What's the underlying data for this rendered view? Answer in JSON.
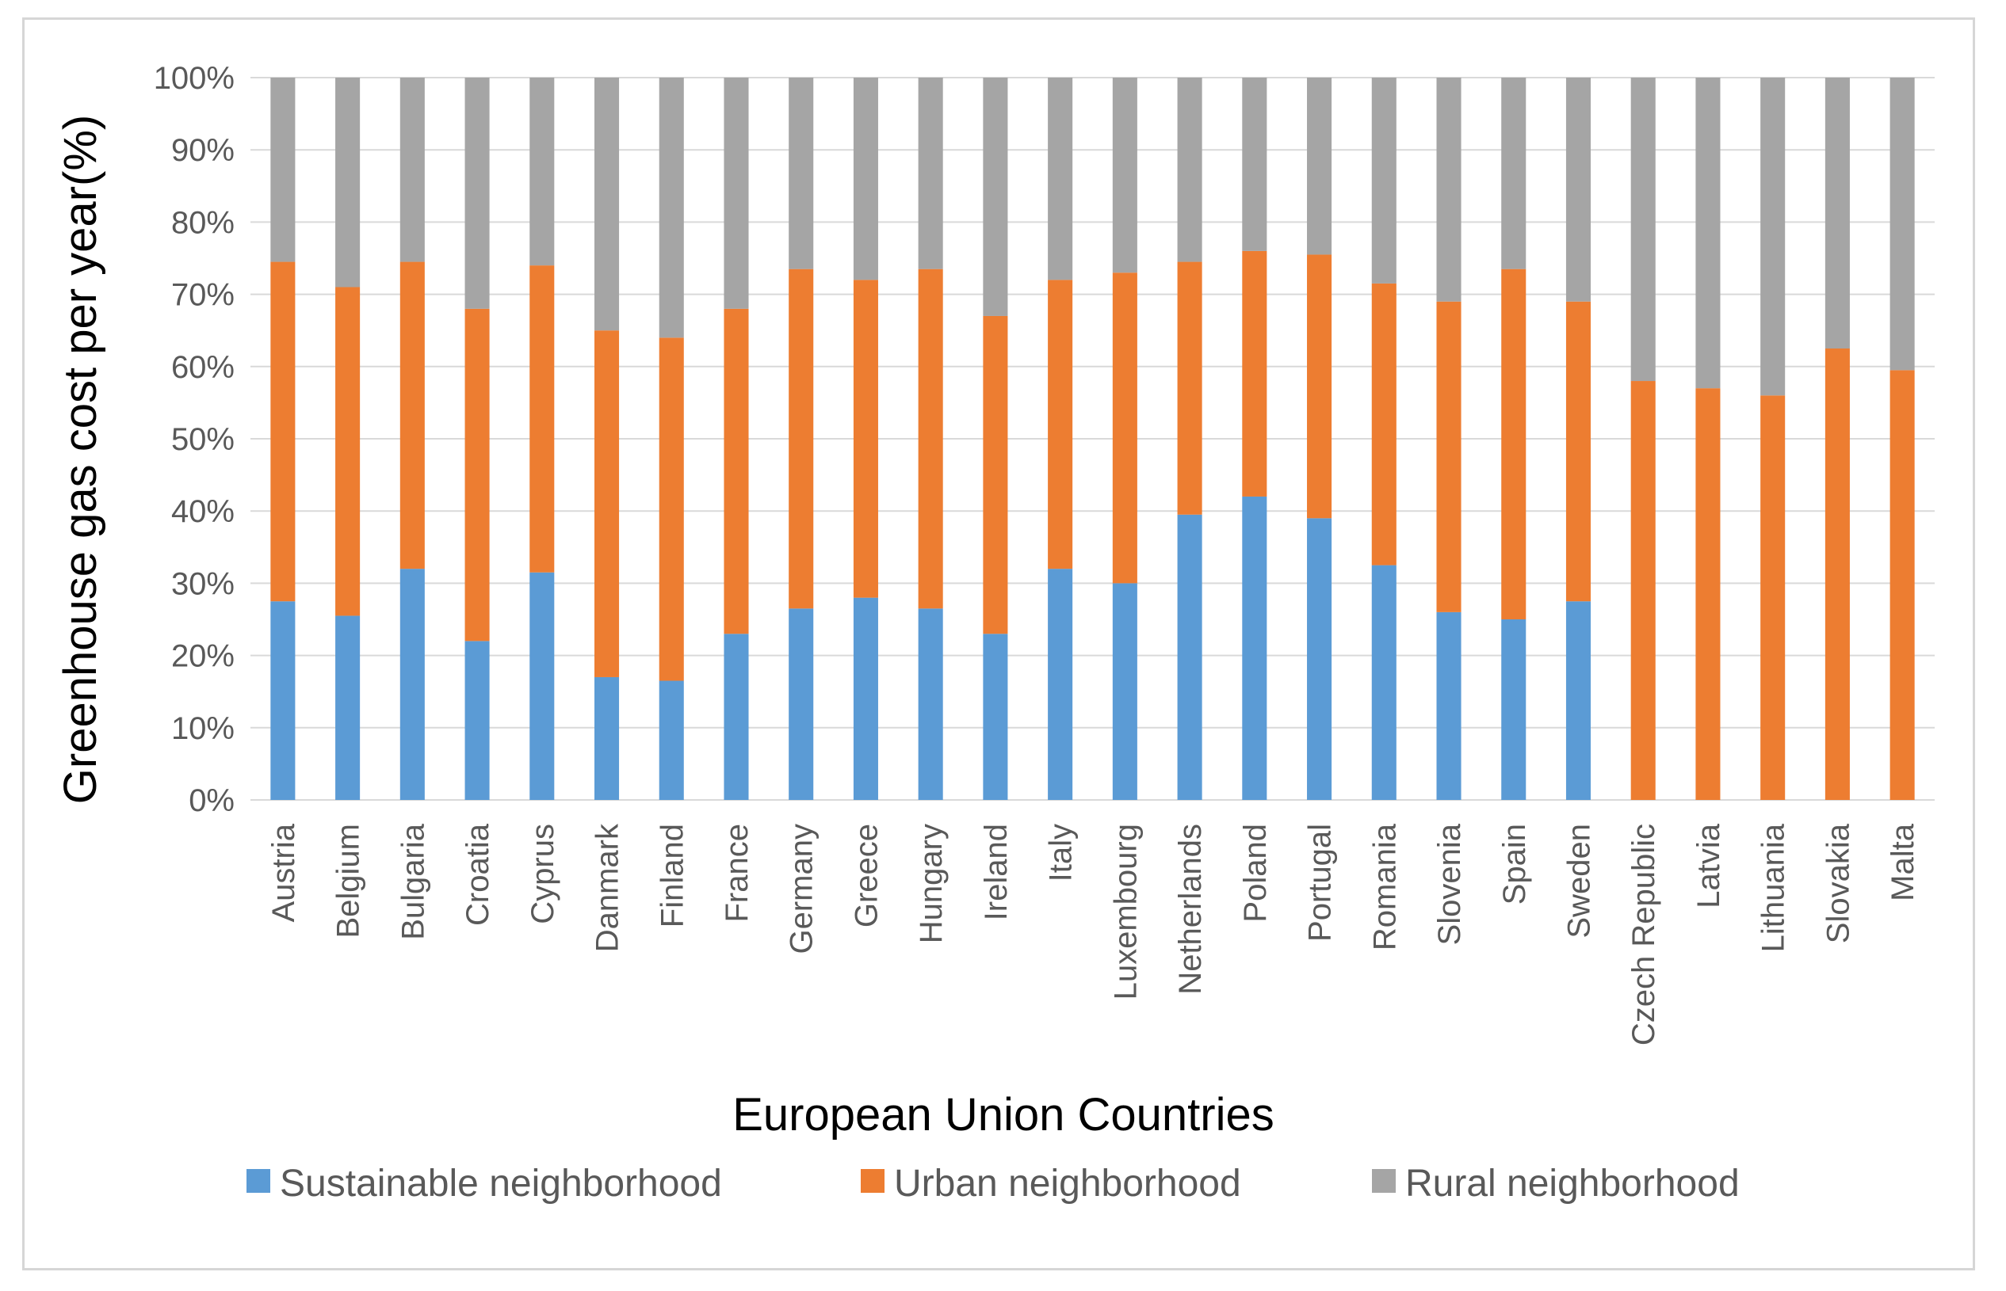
{
  "chart_data": {
    "type": "bar",
    "stacked": true,
    "normalized_percent": true,
    "title": "",
    "xlabel": "European Union Countries",
    "ylabel": "Greenhouse gas cost per year(%)",
    "ylim": [
      0,
      100
    ],
    "yticks": [
      "0%",
      "10%",
      "20%",
      "30%",
      "40%",
      "50%",
      "60%",
      "70%",
      "80%",
      "90%",
      "100%"
    ],
    "grid": true,
    "legend_position": "bottom",
    "categories": [
      "Austria",
      "Belgium",
      "Bulgaria",
      "Croatia",
      "Cyprus",
      "Danmark",
      "Finland",
      "France",
      "Germany",
      "Greece",
      "Hungary",
      "Ireland",
      "Italy",
      "Luxembourg",
      "Netherlands",
      "Poland",
      "Portugal",
      "Romania",
      "Slovenia",
      "Spain",
      "Sweden",
      "Czech Republic",
      "Latvia",
      "Lithuania",
      "Slovakia",
      "Malta"
    ],
    "series": [
      {
        "name": "Sustainable neighborhood",
        "color": "#5b9bd5",
        "values": [
          27.5,
          25.5,
          32,
          22,
          31.5,
          17,
          16.5,
          23,
          26.5,
          28,
          26.5,
          23,
          32,
          30,
          39.5,
          42,
          39,
          32.5,
          26,
          25,
          27.5,
          0,
          0,
          0,
          0,
          0
        ]
      },
      {
        "name": "Urban neighborhood",
        "color": "#ed7d31",
        "values": [
          47,
          45.5,
          42.5,
          46,
          42.5,
          48,
          47.5,
          45,
          47,
          44,
          47,
          44,
          40,
          43,
          35,
          34,
          36.5,
          39,
          43,
          48.5,
          41.5,
          58,
          57,
          56,
          62.5,
          59.5
        ]
      },
      {
        "name": "Rural neighborhood",
        "color": "#a5a5a5",
        "values": [
          25.5,
          29,
          25.5,
          32,
          26,
          35,
          36,
          32,
          26.5,
          28,
          26.5,
          33,
          28,
          27,
          25.5,
          24,
          24.5,
          28.5,
          31,
          26.5,
          31,
          42,
          43,
          44,
          37.5,
          40.5
        ]
      }
    ]
  }
}
